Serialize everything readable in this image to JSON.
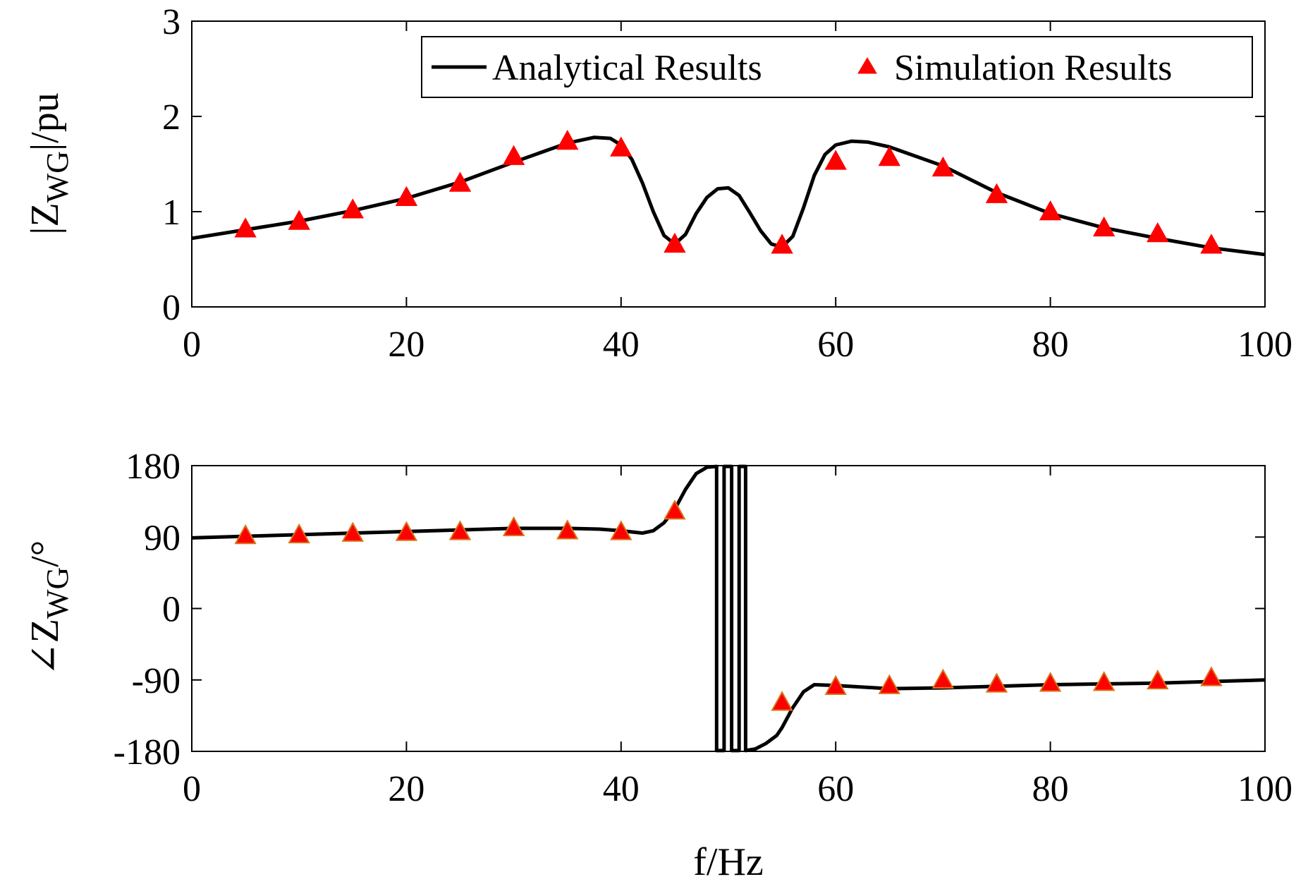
{
  "chart_data": [
    {
      "type": "line",
      "panel": "magnitude",
      "ylabel": {
        "prefix": "|Z",
        "sub": "WG",
        "suffix": "|/pu"
      },
      "xlabel": "",
      "xlim": [
        0,
        100
      ],
      "ylim": [
        0,
        3
      ],
      "xticks": [
        "0",
        "20",
        "40",
        "60",
        "80",
        "100"
      ],
      "yticks": [
        "0",
        "1",
        "2",
        "3"
      ],
      "legend": {
        "position": "top-right",
        "analytical": "Analytical Results",
        "simulation": "Simulation Results"
      },
      "series": [
        {
          "name": "Analytical Results",
          "style": "line",
          "color": "#000000",
          "x": [
            0,
            5,
            10,
            15,
            20,
            25,
            30,
            35,
            37.5,
            39,
            40,
            41,
            42,
            43,
            44,
            45,
            46,
            47,
            48,
            49,
            50,
            51,
            52,
            53,
            54,
            55,
            56,
            57,
            58,
            59,
            60,
            61.5,
            63,
            65,
            70,
            75,
            80,
            85,
            90,
            95,
            100
          ],
          "y": [
            0.72,
            0.81,
            0.9,
            1.01,
            1.14,
            1.31,
            1.52,
            1.72,
            1.78,
            1.77,
            1.7,
            1.55,
            1.3,
            1.0,
            0.75,
            0.66,
            0.76,
            0.98,
            1.15,
            1.24,
            1.25,
            1.17,
            0.99,
            0.8,
            0.66,
            0.63,
            0.74,
            1.04,
            1.38,
            1.6,
            1.7,
            1.74,
            1.73,
            1.68,
            1.48,
            1.2,
            0.98,
            0.83,
            0.72,
            0.62,
            0.55
          ]
        },
        {
          "name": "Simulation Results",
          "style": "marker",
          "color": "#ff0000",
          "x": [
            5,
            10,
            15,
            20,
            25,
            30,
            35,
            40,
            45,
            55,
            60,
            65,
            70,
            75,
            80,
            85,
            90,
            95
          ],
          "y": [
            0.82,
            0.9,
            1.02,
            1.15,
            1.3,
            1.58,
            1.74,
            1.67,
            0.66,
            0.65,
            1.53,
            1.57,
            1.46,
            1.18,
            1.0,
            0.83,
            0.77,
            0.65
          ]
        }
      ]
    },
    {
      "type": "line",
      "panel": "phase",
      "ylabel": {
        "prefix": "∠Z",
        "sub": "WG",
        "suffix": "/°"
      },
      "xlabel": "f/Hz",
      "xlim": [
        0,
        100
      ],
      "ylim": [
        -180,
        180
      ],
      "xticks": [
        "0",
        "20",
        "40",
        "60",
        "80",
        "100"
      ],
      "yticks": [
        "-180",
        "-90",
        "0",
        "90",
        "180"
      ],
      "series": [
        {
          "name": "Analytical Results",
          "style": "line",
          "color": "#000000",
          "x": [
            0,
            5,
            10,
            15,
            20,
            25,
            30,
            35,
            38,
            40,
            42,
            43,
            44,
            45,
            46,
            47,
            48,
            48.9,
            48.9,
            49.6,
            49.6,
            50.3,
            50.3,
            51.0,
            51.0,
            51.6,
            51.6,
            52.5,
            53.5,
            54.5,
            55,
            56,
            57,
            58,
            60,
            65,
            70,
            75,
            80,
            85,
            90,
            95,
            100
          ],
          "y": [
            89,
            91,
            93,
            95,
            97,
            99,
            101,
            101,
            100,
            98,
            95,
            98,
            108,
            125,
            150,
            170,
            178,
            179,
            -179,
            -179,
            179,
            179,
            -179,
            -179,
            179,
            179,
            -179,
            -177,
            -170,
            -160,
            -150,
            -125,
            -105,
            -96,
            -97,
            -101,
            -100,
            -98,
            -96,
            -95,
            -94,
            -92,
            -90
          ]
        },
        {
          "name": "Simulation Results",
          "style": "marker",
          "color": "#ff0000",
          "edge": "#d9731a",
          "x": [
            5,
            10,
            15,
            20,
            25,
            30,
            35,
            40,
            45,
            55,
            60,
            65,
            70,
            75,
            80,
            85,
            90,
            95
          ],
          "y": [
            92,
            93,
            95,
            96,
            97,
            102,
            98,
            97,
            123,
            -118,
            -98,
            -97,
            -90,
            -95,
            -94,
            -93,
            -91,
            -87
          ]
        }
      ]
    }
  ]
}
